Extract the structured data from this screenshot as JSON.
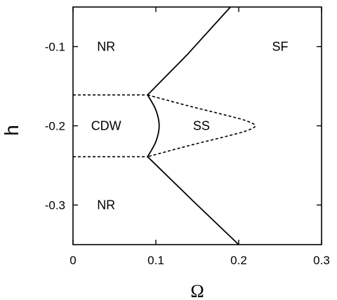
{
  "chart_data": {
    "type": "line",
    "xlabel": "Ω",
    "ylabel": "h",
    "xlim": [
      0,
      0.3
    ],
    "ylim": [
      -0.35,
      -0.05
    ],
    "x_ticks": [
      "0",
      "0.1",
      "0.2",
      "0.3"
    ],
    "y_ticks": [
      "-0.1",
      "-0.2",
      "-0.3"
    ],
    "x_tick_values": [
      0,
      0.1,
      0.2,
      0.3
    ],
    "y_tick_values": [
      -0.1,
      -0.2,
      -0.3
    ],
    "regions": [
      {
        "label": "NR",
        "x": 0.04,
        "y": -0.1
      },
      {
        "label": "SF",
        "x": 0.25,
        "y": -0.1
      },
      {
        "label": "CDW",
        "x": 0.04,
        "y": -0.2
      },
      {
        "label": "SS",
        "x": 0.155,
        "y": -0.2
      },
      {
        "label": "NR",
        "x": 0.04,
        "y": -0.3
      }
    ],
    "boundaries": [
      {
        "style": "solid",
        "x": [
          0.09,
          0.138,
          0.19
        ],
        "y": [
          -0.161,
          -0.11,
          -0.05
        ]
      },
      {
        "style": "solid",
        "x": [
          0.09,
          0.145,
          0.2
        ],
        "y": [
          -0.239,
          -0.295,
          -0.35
        ]
      },
      {
        "style": "solid",
        "x": [
          0.09,
          0.1,
          0.104,
          0.1,
          0.09
        ],
        "y": [
          -0.161,
          -0.18,
          -0.2,
          -0.22,
          -0.239
        ]
      },
      {
        "style": "dashed",
        "x": [
          0.0,
          0.09
        ],
        "y": [
          -0.161,
          -0.161
        ]
      },
      {
        "style": "dashed",
        "x": [
          0.0,
          0.09
        ],
        "y": [
          -0.239,
          -0.239
        ]
      },
      {
        "style": "dashed",
        "x": [
          0.09,
          0.14,
          0.19,
          0.21,
          0.22,
          0.21,
          0.19,
          0.14,
          0.09
        ],
        "y": [
          -0.161,
          -0.175,
          -0.188,
          -0.194,
          -0.2,
          -0.206,
          -0.212,
          -0.225,
          -0.239
        ]
      }
    ]
  }
}
